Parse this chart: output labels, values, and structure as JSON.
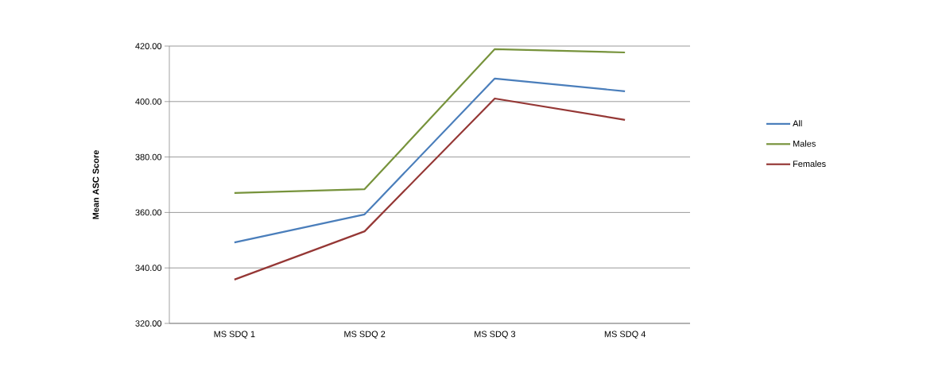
{
  "chart_data": {
    "type": "line",
    "ylabel": "Mean ASC Score",
    "categories": [
      "MS SDQ 1",
      "MS SDQ 2",
      "MS SDQ 3",
      "MS SDQ 4"
    ],
    "series": [
      {
        "name": "All",
        "color": "#4a7ebb",
        "values": [
          349.2,
          359.3,
          408.3,
          403.7
        ]
      },
      {
        "name": "Males",
        "color": "#77933c",
        "values": [
          367.0,
          368.4,
          418.9,
          417.7
        ]
      },
      {
        "name": "Females",
        "color": "#953735",
        "values": [
          335.8,
          353.2,
          401.1,
          393.4
        ]
      }
    ],
    "ylim": [
      320,
      420
    ],
    "yticks": [
      {
        "value": 320,
        "label": "320.00"
      },
      {
        "value": 340,
        "label": "340.00"
      },
      {
        "value": 360,
        "label": "360.00"
      },
      {
        "value": 380,
        "label": "380.00"
      },
      {
        "value": 400,
        "label": "400.00"
      },
      {
        "value": 420,
        "label": "420.00"
      }
    ],
    "grid": "y",
    "legend": "right",
    "marker": "none",
    "line_style": "solid"
  }
}
